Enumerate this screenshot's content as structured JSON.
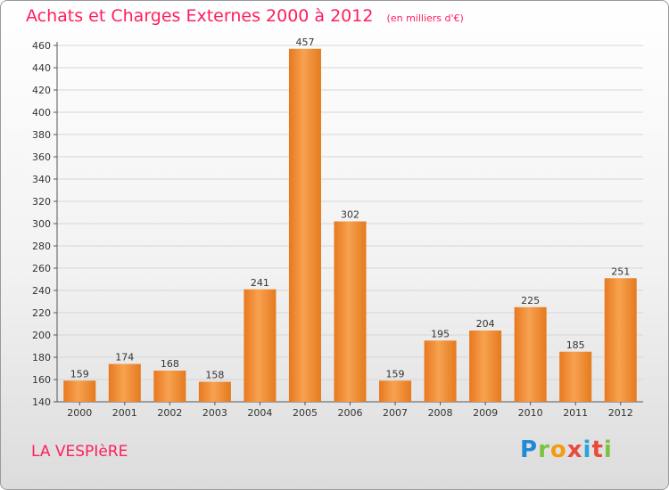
{
  "title": "Achats et Charges Externes 2000 à 2012",
  "unit_label": "(en milliers d'€)",
  "commune": "LA VESPIèRE",
  "brand": {
    "letters": [
      "P",
      "r",
      "o",
      "x",
      "i",
      "t",
      "i"
    ],
    "colors": [
      "#1e8ad8",
      "#7cc242",
      "#f39c12",
      "#e84b3c",
      "#2aa3d8",
      "#e84b3c",
      "#7cc242"
    ]
  },
  "chart_data": {
    "type": "bar",
    "categories": [
      "2000",
      "2001",
      "2002",
      "2003",
      "2004",
      "2005",
      "2006",
      "2007",
      "2008",
      "2009",
      "2010",
      "2011",
      "2012"
    ],
    "values": [
      159,
      174,
      168,
      158,
      241,
      457,
      302,
      159,
      195,
      204,
      225,
      185,
      251
    ],
    "ylim": [
      140,
      460
    ],
    "yticks": [
      140,
      160,
      180,
      200,
      220,
      240,
      260,
      280,
      300,
      320,
      340,
      360,
      380,
      400,
      420,
      440,
      460
    ],
    "grid": true,
    "bar_color": "#f28a2e"
  }
}
